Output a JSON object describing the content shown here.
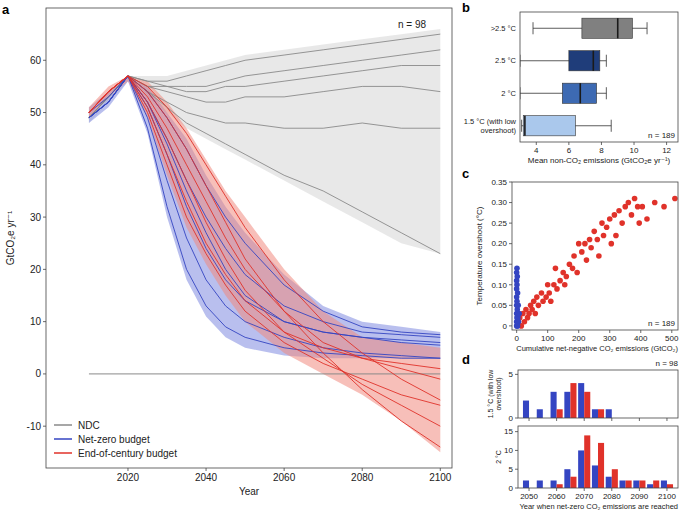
{
  "chart_data": [
    {
      "panel": "a",
      "type": "line",
      "ylabel": "GtCO₂e yr⁻¹",
      "xlabel": "Year",
      "annotation": "n = 98",
      "x": [
        2010,
        2015,
        2020,
        2025,
        2030,
        2035,
        2040,
        2045,
        2050,
        2060,
        2070,
        2080,
        2090,
        2100
      ],
      "xlim": [
        1999,
        2103
      ],
      "xticks": [
        2020,
        2040,
        2060,
        2080,
        2100
      ],
      "ylim": [
        -18,
        70
      ],
      "yticks": [
        -10,
        0,
        10,
        20,
        30,
        40,
        50,
        60
      ],
      "legend": "lower left",
      "reference_line": {
        "y": 0,
        "x": [
          2010,
          2100
        ]
      },
      "envelopes": [
        {
          "color": "#d6d6d6",
          "lower": [
            48,
            52,
            56,
            53,
            50,
            47,
            45,
            43,
            41,
            37,
            33,
            29,
            25,
            23
          ],
          "upper": [
            50,
            54,
            57,
            57,
            57,
            58,
            59,
            60,
            61,
            62,
            63,
            64,
            65,
            66
          ]
        },
        {
          "color": "#7f8be0",
          "lower": [
            48,
            51,
            56,
            46,
            30,
            18,
            11,
            7,
            5,
            3.5,
            3,
            3,
            3,
            3
          ],
          "upper": [
            51,
            54,
            57,
            55,
            50,
            45,
            38,
            32,
            27,
            19,
            13,
            10,
            9,
            8
          ]
        },
        {
          "color": "#f08a80",
          "lower": [
            49,
            53,
            56,
            49,
            38,
            28,
            21,
            15,
            10,
            4,
            0,
            -4,
            -9,
            -15
          ],
          "upper": [
            51,
            55,
            57,
            56,
            52,
            47,
            41,
            35,
            30,
            20,
            12,
            7,
            6,
            5
          ]
        }
      ],
      "series": [
        {
          "name": "NDC",
          "color": "#8a8a8a",
          "values": [
            49,
            53,
            57,
            56,
            56,
            57,
            58,
            59,
            60,
            61,
            62,
            63,
            64,
            65
          ]
        },
        {
          "name": "NDC",
          "color": "#8a8a8a",
          "values": [
            49,
            53,
            57,
            56,
            55,
            55,
            55,
            56,
            57,
            58,
            59,
            60,
            61,
            62
          ]
        },
        {
          "name": "NDC",
          "color": "#8a8a8a",
          "values": [
            49,
            53,
            57,
            55,
            55,
            54,
            54,
            55,
            55,
            56,
            57,
            58,
            59,
            59
          ]
        },
        {
          "name": "NDC",
          "color": "#8a8a8a",
          "values": [
            49,
            53,
            57,
            55,
            54,
            53,
            52,
            52,
            53,
            53,
            54,
            55,
            55,
            54
          ]
        },
        {
          "name": "NDC",
          "color": "#8a8a8a",
          "values": [
            49,
            53,
            57,
            54,
            52,
            50,
            49,
            48,
            48,
            47,
            47,
            48,
            47,
            47
          ]
        },
        {
          "name": "NDC",
          "color": "#8a8a8a",
          "values": [
            49,
            53,
            57,
            54,
            51,
            48,
            46,
            44,
            42,
            38,
            35,
            31,
            27,
            23
          ]
        },
        {
          "name": "Net-zero budget",
          "color": "#3445c2",
          "values": [
            49,
            52,
            57,
            47,
            32,
            20,
            13,
            9,
            7,
            5,
            4,
            3.5,
            3,
            3
          ]
        },
        {
          "name": "Net-zero budget",
          "color": "#3445c2",
          "values": [
            49,
            52,
            57,
            49,
            37,
            26,
            18,
            13,
            10,
            7,
            5,
            4,
            3.5,
            3
          ]
        },
        {
          "name": "Net-zero budget",
          "color": "#3445c2",
          "values": [
            49,
            52,
            57,
            51,
            42,
            32,
            24,
            18,
            14,
            10,
            8,
            7,
            6.5,
            6
          ]
        },
        {
          "name": "Net-zero budget",
          "color": "#3445c2",
          "values": [
            49,
            52,
            57,
            52,
            45,
            37,
            30,
            24,
            19,
            13,
            10,
            8,
            7.5,
            7
          ]
        },
        {
          "name": "Net-zero budget",
          "color": "#3445c2",
          "values": [
            49,
            52,
            57,
            54,
            49,
            43,
            36,
            30,
            25,
            17,
            12,
            9,
            8,
            7.5
          ]
        },
        {
          "name": "Net-zero budget",
          "color": "#3445c2",
          "values": [
            50,
            53,
            57,
            52,
            44,
            35,
            27,
            20,
            15,
            10,
            8,
            7,
            6,
            5.5
          ]
        },
        {
          "name": "End-of-century budget",
          "color": "#e0322a",
          "values": [
            50,
            54,
            57,
            50,
            40,
            30,
            23,
            17,
            12,
            6,
            2,
            -1,
            -4,
            -6
          ]
        },
        {
          "name": "End-of-century budget",
          "color": "#e0322a",
          "values": [
            50,
            54,
            57,
            52,
            45,
            37,
            29,
            22,
            16,
            8,
            3,
            -2,
            -6,
            -10
          ]
        },
        {
          "name": "End-of-century budget",
          "color": "#e0322a",
          "values": [
            50,
            54,
            57,
            54,
            49,
            43,
            36,
            29,
            22,
            12,
            4,
            -3,
            -9,
            -14
          ]
        },
        {
          "name": "End-of-century budget",
          "color": "#e0322a",
          "values": [
            50,
            54,
            57,
            53,
            47,
            40,
            33,
            26,
            20,
            12,
            6,
            3,
            1,
            -1
          ]
        },
        {
          "name": "End-of-century budget",
          "color": "#e0322a",
          "values": [
            50,
            54,
            57,
            51,
            42,
            33,
            25,
            19,
            14,
            8,
            5,
            3,
            2,
            1
          ]
        },
        {
          "name": "End-of-century budget",
          "color": "#e0322a",
          "values": [
            50,
            54,
            57,
            55,
            51,
            46,
            40,
            34,
            28,
            18,
            10,
            4,
            -1,
            -5
          ]
        }
      ]
    },
    {
      "panel": "b",
      "type": "box",
      "orientation": "horizontal",
      "annotation": "n = 189",
      "xlabel": "Mean non-CO₂ emissions (GtCO₂e yr⁻¹)",
      "categories": [
        ">2.5 °C",
        "2.5 °C",
        "2 °C",
        "1.5 °C (with low overshoot)"
      ],
      "colors": [
        "#808080",
        "#1f3d7a",
        "#3d6ab3",
        "#aac8ec"
      ],
      "min": [
        3.8,
        3.0,
        3.0,
        3.1
      ],
      "q1": [
        6.8,
        6.0,
        5.6,
        3.2
      ],
      "median": [
        9.0,
        7.5,
        6.7,
        3.3
      ],
      "q3": [
        9.9,
        7.9,
        7.7,
        6.4
      ],
      "max": [
        10.8,
        8.3,
        8.3,
        8.6
      ],
      "xlim": [
        3,
        12.7
      ],
      "xticks": [
        4,
        6,
        8,
        10,
        12
      ]
    },
    {
      "panel": "c",
      "type": "scatter",
      "annotation": "n = 189",
      "xlabel": "Cumulative net-negative CO₂ emissions (GtCO₂)",
      "ylabel": "Temperature overshoot (°C)",
      "xlim": [
        -15,
        520
      ],
      "xticks": [
        0,
        100,
        200,
        300,
        400,
        500
      ],
      "ylim": [
        -0.01,
        0.35
      ],
      "yticks": [
        0,
        0.05,
        {
          "value": 0.1,
          "label": "0.10"
        },
        0.15,
        {
          "value": 0.2,
          "label": "0.20"
        },
        0.25,
        {
          "value": 0.3,
          "label": "0.30"
        },
        0.35
      ],
      "series": [
        {
          "color": "#e0322a",
          "marker": "circle",
          "x": [
            5,
            10,
            15,
            20,
            25,
            30,
            35,
            40,
            45,
            50,
            55,
            60,
            65,
            70,
            80,
            85,
            95,
            100,
            105,
            110,
            120,
            125,
            130,
            140,
            150,
            155,
            160,
            170,
            180,
            185,
            195,
            200,
            210,
            220,
            225,
            235,
            240,
            250,
            260,
            265,
            275,
            280,
            290,
            300,
            305,
            315,
            320,
            330,
            340,
            350,
            360,
            370,
            380,
            390,
            395,
            405,
            420,
            445,
            475,
            510
          ],
          "values": [
            0.01,
            0.02,
            0,
            0.03,
            0.01,
            0.04,
            0.02,
            0.03,
            0.05,
            0.04,
            0.06,
            0.03,
            0.07,
            0.05,
            0.08,
            0.06,
            0.07,
            0.1,
            0.08,
            0.06,
            0.1,
            0.14,
            0.09,
            0.11,
            0.13,
            0.1,
            0.12,
            0.15,
            0.14,
            0.17,
            0.13,
            0.2,
            0.18,
            0.2,
            0.16,
            0.21,
            0.19,
            0.23,
            0.21,
            0.17,
            0.25,
            0.22,
            0.24,
            0.26,
            0.2,
            0.27,
            0.22,
            0.28,
            0.25,
            0.29,
            0.3,
            0.27,
            0.31,
            0.29,
            0.25,
            0.29,
            0.26,
            0.3,
            0.29,
            0.31
          ]
        },
        {
          "color": "#3445c2",
          "marker": "circle",
          "x": [
            0,
            0,
            1,
            0,
            2,
            0,
            1,
            0,
            3,
            0,
            1,
            0,
            2,
            0,
            1,
            4,
            6,
            3,
            8,
            5
          ],
          "values": [
            0,
            0.01,
            0.02,
            0.03,
            0.04,
            0.05,
            0.06,
            0.07,
            0.08,
            0.09,
            0.1,
            0.11,
            0.12,
            0.13,
            0.14,
            0.02,
            0.01,
            0,
            0.03,
            0.05
          ]
        }
      ]
    },
    {
      "panel": "d",
      "type": "bar",
      "annotation": "n = 98",
      "ylabel": "1.5 °C (with low overshoot)",
      "tick_labels": "y",
      "x": [
        2050,
        2055,
        2060,
        2065,
        2070,
        2075,
        2080,
        2085,
        2090,
        2095,
        2100
      ],
      "xlim": [
        2046,
        2104
      ],
      "xticks": [
        2050,
        2060,
        2070,
        2080,
        2090,
        2100
      ],
      "ylim": [
        0,
        5.5
      ],
      "yticks": [
        0,
        5
      ],
      "series": [
        {
          "color": "#3445c2",
          "values": [
            2,
            1,
            3,
            3,
            4,
            1,
            1,
            0,
            0,
            0,
            0
          ]
        },
        {
          "color": "#e0322a",
          "values": [
            0,
            0,
            1,
            4,
            3,
            1,
            0,
            0,
            0,
            0,
            0
          ]
        }
      ]
    },
    {
      "type": "bar",
      "ylabel": "2 °C",
      "xlabel": "Year when net-zero CO₂ emissions are reached",
      "x": [
        2050,
        2055,
        2060,
        2065,
        2070,
        2075,
        2080,
        2085,
        2090,
        2095,
        2100
      ],
      "xlim": [
        2046,
        2104
      ],
      "xticks": [
        2050,
        2060,
        2070,
        2080,
        2090,
        2100
      ],
      "ylim": [
        0,
        16.5
      ],
      "yticks": [
        0,
        5,
        10,
        15
      ],
      "series": [
        {
          "color": "#3445c2",
          "values": [
            2,
            2,
            2,
            5,
            10,
            6,
            3,
            2,
            2,
            1,
            2
          ]
        },
        {
          "color": "#e0322a",
          "values": [
            0,
            0,
            1,
            3,
            14,
            12,
            5,
            2,
            2,
            2,
            1
          ]
        }
      ]
    }
  ]
}
